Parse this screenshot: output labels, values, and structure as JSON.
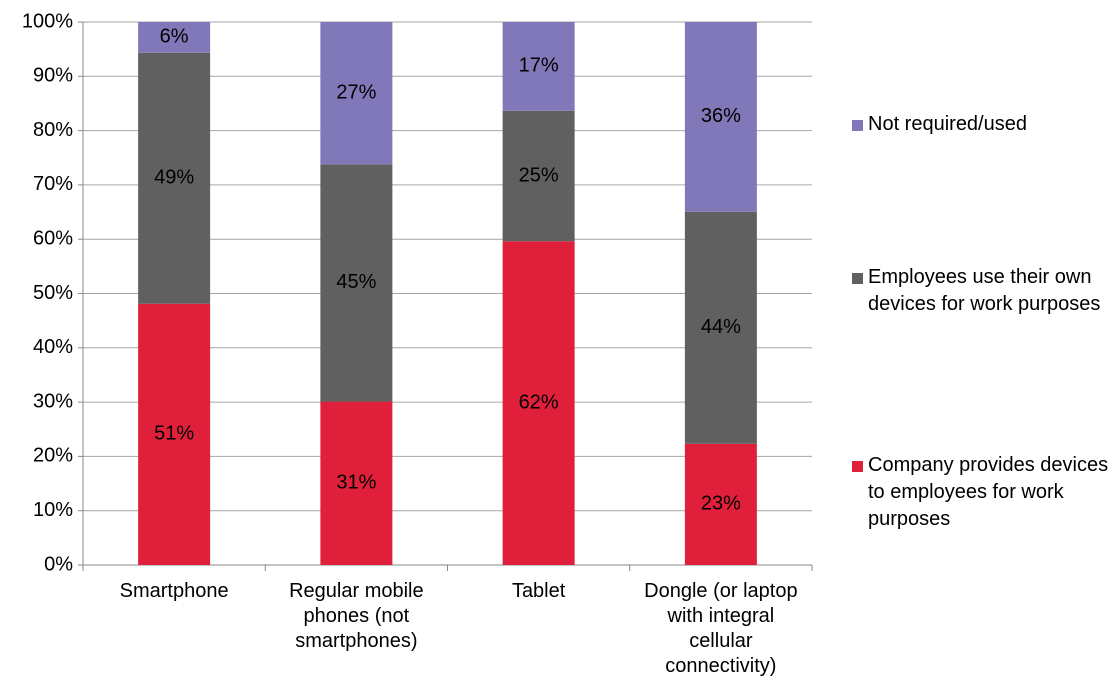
{
  "chart_data": {
    "type": "bar",
    "stacking": "percent",
    "categories": [
      "Smartphone",
      "Regular mobile phones (not smartphones)",
      "Tablet",
      "Dongle (or laptop with integral cellular connectivity)"
    ],
    "series": [
      {
        "name": "Company provides devices to employees for work purposes",
        "color": "#e0203a",
        "values": [
          51,
          31,
          62,
          23
        ],
        "value_labels": [
          "51%",
          "31%",
          "62%",
          "23%"
        ]
      },
      {
        "name": "Employees use their own devices for work purposes",
        "color": "#606060",
        "values": [
          49,
          45,
          25,
          44
        ],
        "value_labels": [
          "49%",
          "45%",
          "25%",
          "44%"
        ]
      },
      {
        "name": "Not required/used",
        "color": "#8078b8",
        "values": [
          6,
          27,
          17,
          36
        ],
        "value_labels": [
          "6%",
          "27%",
          "17%",
          "36%"
        ]
      }
    ],
    "ylim": [
      0,
      100
    ],
    "yticks": [
      {
        "value": 0,
        "label": "0%"
      },
      {
        "value": 10,
        "label": "10%"
      },
      {
        "value": 20,
        "label": "20%"
      },
      {
        "value": 30,
        "label": "30%"
      },
      {
        "value": 40,
        "label": "40%"
      },
      {
        "value": 50,
        "label": "50%"
      },
      {
        "value": 60,
        "label": "60%"
      },
      {
        "value": 70,
        "label": "70%"
      },
      {
        "value": 80,
        "label": "80%"
      },
      {
        "value": 90,
        "label": "90%"
      },
      {
        "value": 100,
        "label": "100%"
      }
    ],
    "grid": true,
    "legend": "right"
  }
}
